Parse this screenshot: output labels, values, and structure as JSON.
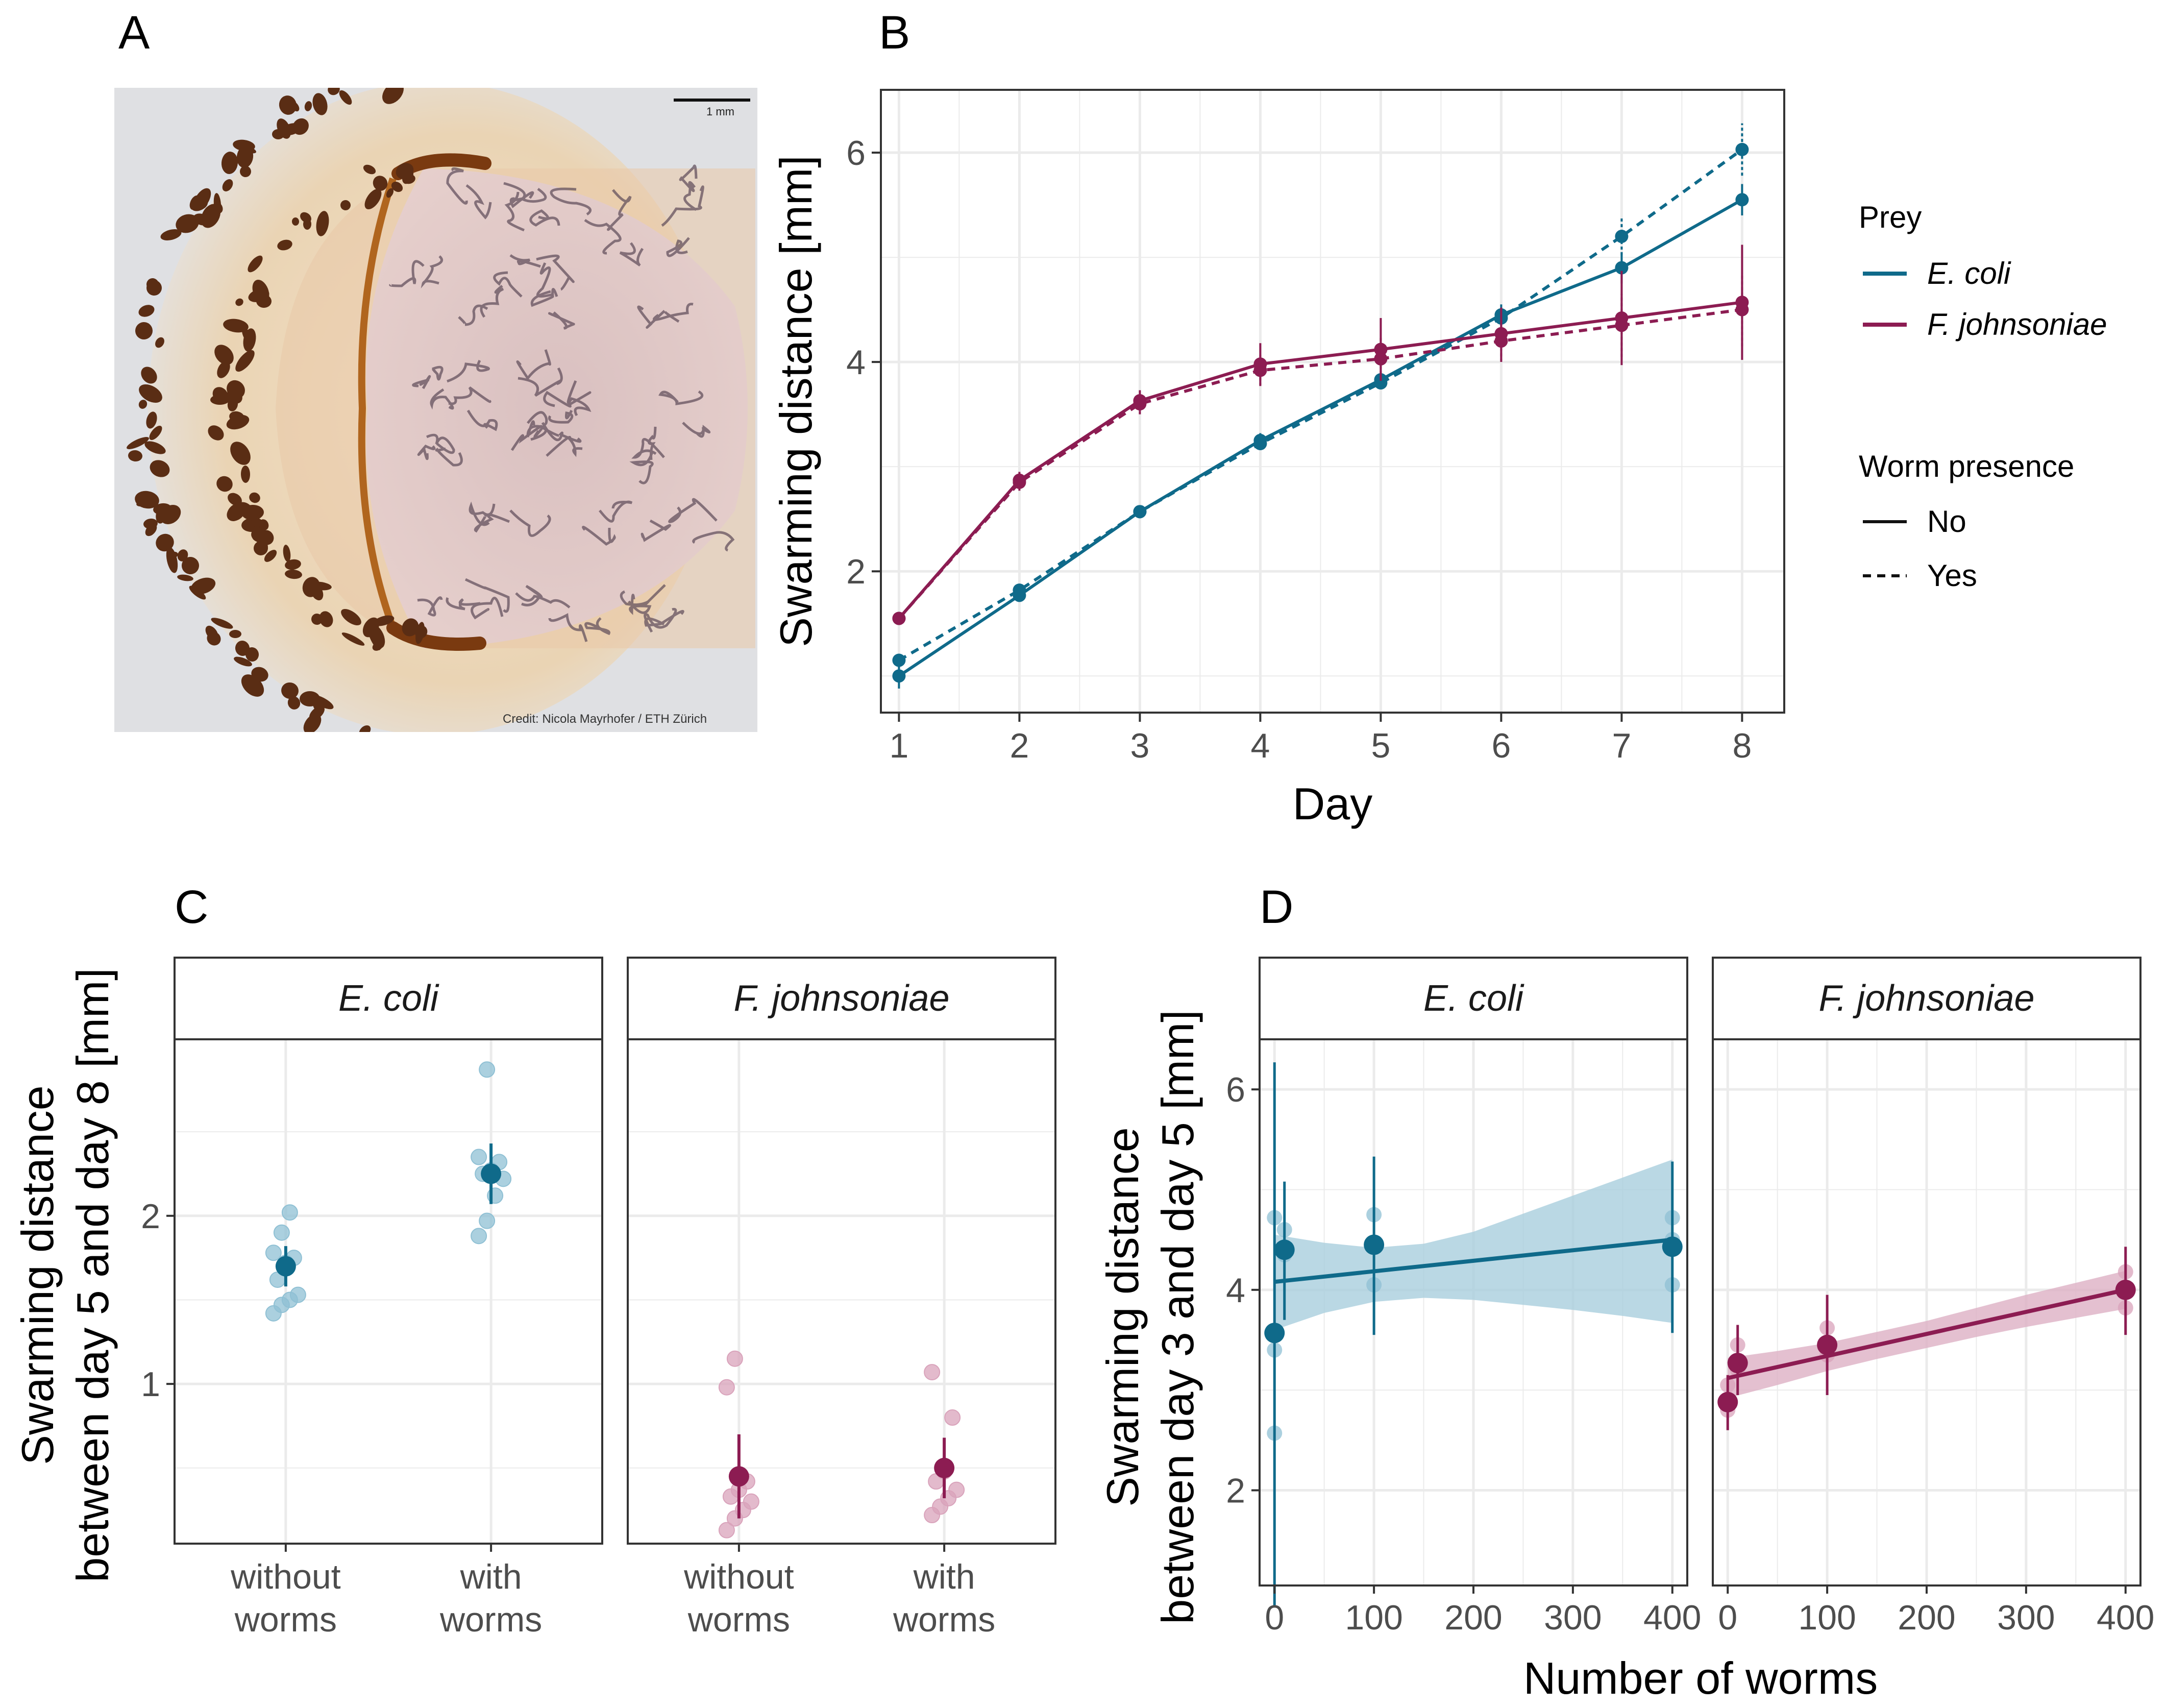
{
  "panels": {
    "a": {
      "letter": "A",
      "credit": "Credit: Nicola Mayrhofer / ETH Zürich",
      "scale_label": "1 mm"
    },
    "b": {
      "letter": "B"
    },
    "c": {
      "letter": "C"
    },
    "d": {
      "letter": "D"
    }
  },
  "colors": {
    "ecoli": "#0f6a8a",
    "fjohnsoniae": "#8c1c52",
    "ecoli_light": "#8fc0d4",
    "fj_light": "#d9a3bb",
    "grid": "#ebebeb",
    "ribbon_ecoli": "#a9cedd",
    "ribbon_fj": "#ddb0c4"
  },
  "legend": {
    "prey_title": "Prey",
    "prey_items": [
      {
        "label": "E. coli",
        "color": "#0f6a8a"
      },
      {
        "label": "F. johnsoniae",
        "color": "#8c1c52"
      }
    ],
    "worm_title": "Worm presence",
    "worm_items": [
      {
        "label": "No",
        "dash": "solid"
      },
      {
        "label": "Yes",
        "dash": "dashed"
      }
    ]
  },
  "chart_data": [
    {
      "id": "B",
      "type": "line",
      "title": "",
      "xlabel": "Day",
      "ylabel": "Swarming distance [mm]",
      "x": [
        1,
        2,
        3,
        4,
        5,
        6,
        7,
        8
      ],
      "xlim": [
        0.85,
        8.35
      ],
      "ylim": [
        0.65,
        6.6
      ],
      "yticks": [
        2,
        4,
        6
      ],
      "series": [
        {
          "name": "E. coli - No",
          "prey": "E. coli",
          "worms": "No",
          "values": [
            1.0,
            1.77,
            2.57,
            3.25,
            3.83,
            4.45,
            4.9,
            5.55
          ],
          "err": [
            0.12,
            0.05,
            0.05,
            0.07,
            0.07,
            0.1,
            0.15,
            0.15
          ]
        },
        {
          "name": "E. coli - Yes",
          "prey": "E. coli",
          "worms": "Yes",
          "values": [
            1.15,
            1.82,
            2.57,
            3.22,
            3.8,
            4.42,
            5.2,
            6.03
          ],
          "err": [
            0.08,
            0.05,
            0.05,
            0.05,
            0.05,
            0.08,
            0.18,
            0.25
          ]
        },
        {
          "name": "F. johnsoniae - No",
          "prey": "F. johnsoniae",
          "worms": "No",
          "values": [
            1.55,
            2.87,
            3.63,
            3.98,
            4.12,
            4.27,
            4.42,
            4.57
          ],
          "err": [
            0.05,
            0.08,
            0.1,
            0.2,
            0.3,
            0.25,
            0.45,
            0.55
          ]
        },
        {
          "name": "F. johnsoniae - Yes",
          "prey": "F. johnsoniae",
          "worms": "Yes",
          "values": [
            1.55,
            2.85,
            3.6,
            3.92,
            4.03,
            4.2,
            4.35,
            4.5
          ],
          "err": [
            0.05,
            0.08,
            0.1,
            0.15,
            0.2,
            0.2,
            0.3,
            0.35
          ]
        }
      ]
    },
    {
      "id": "C",
      "type": "scatter",
      "title": "",
      "xlabel": "",
      "ylabel_lines": [
        "Swarming distance",
        "between day 5 and day 8 [mm]"
      ],
      "ylim": [
        0.05,
        3.05
      ],
      "yticks": [
        1,
        2
      ],
      "facets": [
        {
          "strip": "E. coli",
          "prey": "E. coli",
          "categories": [
            "without worms",
            "with worms"
          ],
          "category_lines": [
            [
              "without",
              "worms"
            ],
            [
              "with",
              "worms"
            ]
          ],
          "means": [
            1.7,
            2.25
          ],
          "err": [
            0.12,
            0.18
          ],
          "points": [
            [
              1.42,
              1.47,
              1.5,
              1.53,
              1.62,
              1.72,
              1.75,
              1.78,
              1.9,
              2.02
            ],
            [
              1.88,
              1.97,
              2.12,
              2.22,
              2.25,
              2.27,
              2.32,
              2.35,
              2.87
            ]
          ]
        },
        {
          "strip": "F. johnsoniae",
          "prey": "F. johnsoniae",
          "categories": [
            "without worms",
            "with worms"
          ],
          "category_lines": [
            [
              "without",
              "worms"
            ],
            [
              "with",
              "worms"
            ]
          ],
          "means": [
            0.45,
            0.5
          ],
          "err": [
            0.25,
            0.18
          ],
          "points": [
            [
              0.13,
              0.2,
              0.25,
              0.3,
              0.33,
              0.37,
              0.42,
              0.98,
              1.15
            ],
            [
              0.22,
              0.27,
              0.32,
              0.37,
              0.42,
              0.48,
              0.8,
              1.07
            ]
          ]
        }
      ]
    },
    {
      "id": "D",
      "type": "scatter",
      "title": "",
      "xlabel": "Number of worms",
      "ylabel_lines": [
        "Swarming distance",
        "between day 3 and day 5 [mm]"
      ],
      "xlim": [
        -15,
        415
      ],
      "ylim": [
        1.05,
        6.5
      ],
      "xticks": [
        0,
        100,
        200,
        300,
        400
      ],
      "yticks": [
        2,
        4,
        6
      ],
      "facets": [
        {
          "strip": "E. coli",
          "prey": "E. coli",
          "means": [
            {
              "x": 0,
              "y": 3.57,
              "lo": 0.85,
              "hi": 6.27
            },
            {
              "x": 10,
              "y": 4.4,
              "lo": 3.7,
              "hi": 5.08
            },
            {
              "x": 100,
              "y": 4.45,
              "lo": 3.55,
              "hi": 5.33
            },
            {
              "x": 400,
              "y": 4.43,
              "lo": 3.57,
              "hi": 5.28
            }
          ],
          "points": [
            {
              "x": 0,
              "y": 2.57
            },
            {
              "x": 0,
              "y": 3.4
            },
            {
              "x": 0,
              "y": 4.72
            },
            {
              "x": 10,
              "y": 4.35
            },
            {
              "x": 10,
              "y": 4.6
            },
            {
              "x": 100,
              "y": 4.05
            },
            {
              "x": 100,
              "y": 4.45
            },
            {
              "x": 100,
              "y": 4.75
            },
            {
              "x": 400,
              "y": 4.05
            },
            {
              "x": 400,
              "y": 4.5
            },
            {
              "x": 400,
              "y": 4.72
            }
          ],
          "fit": {
            "x": [
              0,
              400
            ],
            "y": [
              4.08,
              4.5
            ]
          },
          "band": {
            "x": [
              0,
              50,
              100,
              150,
              200,
              250,
              300,
              350,
              400
            ],
            "lo": [
              3.6,
              3.77,
              3.88,
              3.92,
              3.9,
              3.85,
              3.8,
              3.74,
              3.67
            ],
            "hi": [
              4.55,
              4.47,
              4.42,
              4.46,
              4.58,
              4.76,
              4.94,
              5.12,
              5.3
            ]
          }
        },
        {
          "strip": "F. johnsoniae",
          "prey": "F. johnsoniae",
          "means": [
            {
              "x": 0,
              "y": 2.88,
              "lo": 2.6,
              "hi": 3.15
            },
            {
              "x": 10,
              "y": 3.27,
              "lo": 2.95,
              "hi": 3.65
            },
            {
              "x": 100,
              "y": 3.45,
              "lo": 2.95,
              "hi": 3.95
            },
            {
              "x": 400,
              "y": 4.0,
              "lo": 3.55,
              "hi": 4.43
            }
          ],
          "points": [
            {
              "x": 0,
              "y": 2.8
            },
            {
              "x": 0,
              "y": 3.05
            },
            {
              "x": 10,
              "y": 3.2
            },
            {
              "x": 10,
              "y": 3.45
            },
            {
              "x": 100,
              "y": 3.35
            },
            {
              "x": 100,
              "y": 3.62
            },
            {
              "x": 400,
              "y": 3.82
            },
            {
              "x": 400,
              "y": 4.18
            }
          ],
          "fit": {
            "x": [
              0,
              400
            ],
            "y": [
              3.12,
              4.0
            ]
          },
          "band": {
            "x": [
              0,
              50,
              100,
              150,
              200,
              250,
              300,
              350,
              400
            ],
            "lo": [
              2.92,
              3.05,
              3.19,
              3.31,
              3.42,
              3.53,
              3.63,
              3.72,
              3.81
            ],
            "hi": [
              3.32,
              3.39,
              3.47,
              3.58,
              3.69,
              3.82,
              3.95,
              4.07,
              4.19
            ]
          }
        }
      ]
    }
  ]
}
